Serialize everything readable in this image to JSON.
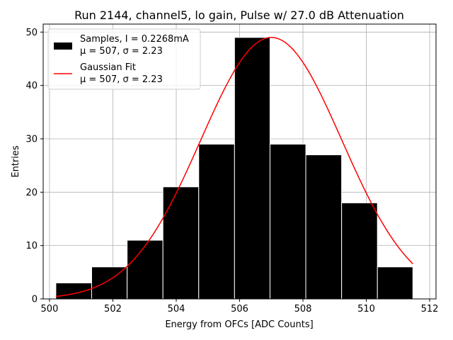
{
  "chart_data": {
    "type": "bar",
    "title": "Run 2144, channel5, lo gain, Pulse w/ 27.0 dB Attenuation",
    "xlabel": "Energy from OFCs [ADC Counts]",
    "ylabel": "Entries",
    "xlim": [
      499.8,
      512.2
    ],
    "ylim": [
      0,
      51.5
    ],
    "xticks": [
      500,
      502,
      504,
      506,
      508,
      510,
      512
    ],
    "yticks": [
      0,
      10,
      20,
      30,
      40,
      50
    ],
    "grid": true,
    "legend_position": "top-left",
    "bin_edges": [
      500.2,
      501.33,
      502.45,
      503.58,
      504.71,
      505.84,
      506.96,
      508.09,
      509.22,
      510.35,
      511.47
    ],
    "counts": [
      3,
      6,
      11,
      21,
      29,
      49,
      29,
      27,
      18,
      6
    ],
    "series": [
      {
        "name": "Samples, I = 0.2268mA",
        "stats": "μ = 507, σ = 2.23",
        "kind": "histogram",
        "color": "#000000"
      },
      {
        "name": "Gaussian Fit",
        "stats": "μ = 507, σ = 2.23",
        "kind": "line",
        "color": "#ff0000",
        "amplitude": 49,
        "mu": 507,
        "sigma": 2.23,
        "x_range": [
          500.2,
          511.47
        ]
      }
    ]
  }
}
